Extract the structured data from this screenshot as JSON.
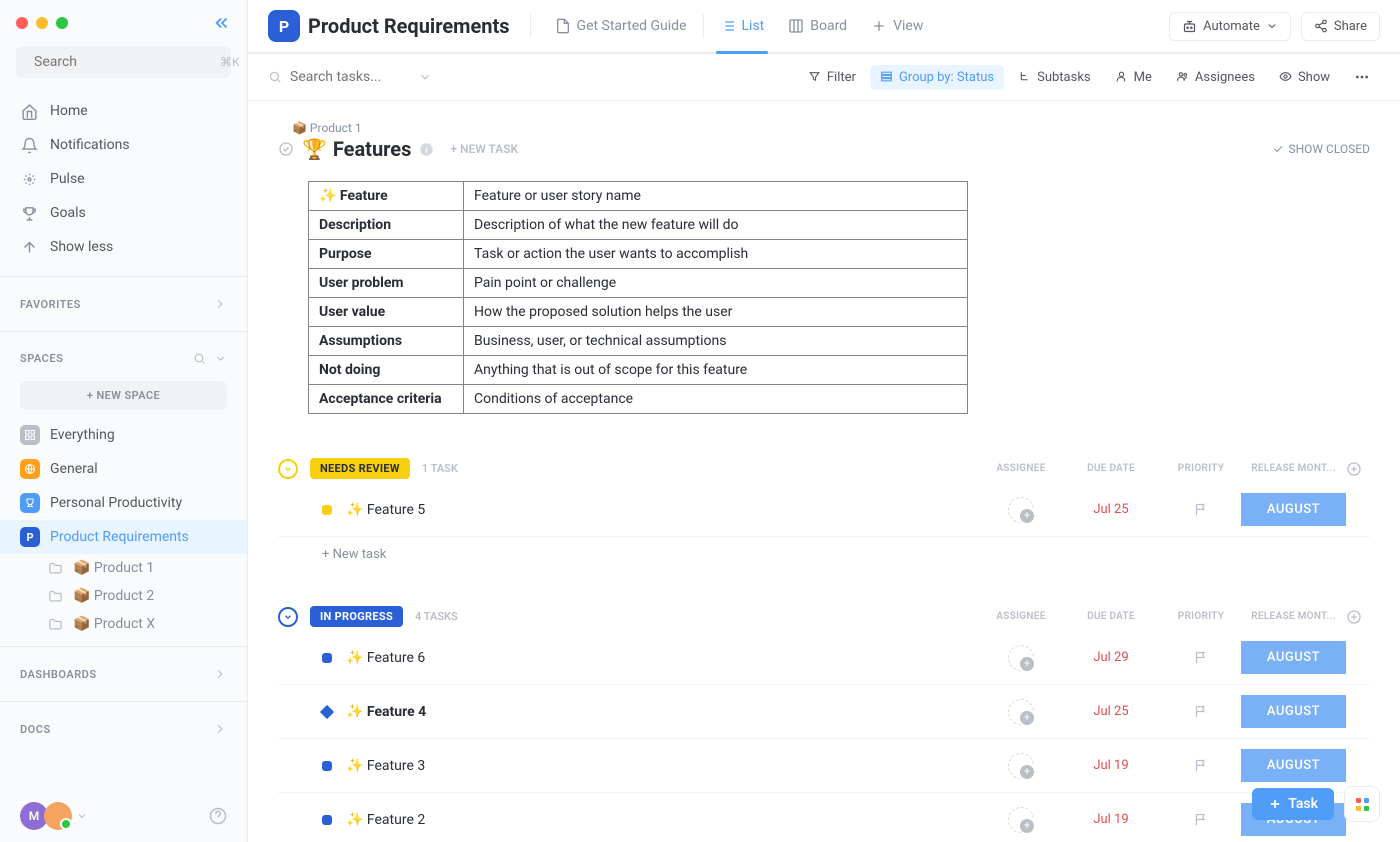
{
  "sidebar": {
    "search_placeholder": "Search",
    "shortcut": "⌘K",
    "nav": [
      {
        "label": "Home",
        "icon": "home"
      },
      {
        "label": "Notifications",
        "icon": "bell"
      },
      {
        "label": "Pulse",
        "icon": "pulse"
      },
      {
        "label": "Goals",
        "icon": "trophy"
      },
      {
        "label": "Show less",
        "icon": "up-arrow"
      }
    ],
    "favorites_label": "FAVORITES",
    "spaces_label": "SPACES",
    "new_space_label": "+ NEW SPACE",
    "spaces": [
      {
        "label": "Everything",
        "badge_class": "sb-grey",
        "badge_icon": "grid"
      },
      {
        "label": "General",
        "badge_class": "sb-orange",
        "badge_icon": "globe"
      },
      {
        "label": "Personal Productivity",
        "badge_class": "sb-blue",
        "badge_icon": "cup"
      },
      {
        "label": "Product Requirements",
        "badge_class": "sb-darkblue",
        "badge_text": "P",
        "active": true
      }
    ],
    "folders": [
      {
        "label": "📦 Product 1"
      },
      {
        "label": "📦 Product 2"
      },
      {
        "label": "📦 Product X"
      }
    ],
    "dashboards_label": "DASHBOARDS",
    "docs_label": "DOCS",
    "avatar_initial": "M"
  },
  "header": {
    "workspace_badge": "P",
    "workspace_title": "Product Requirements",
    "tabs": [
      {
        "label": "Get Started Guide",
        "icon": "doc"
      },
      {
        "label": "List",
        "icon": "list",
        "active": true
      },
      {
        "label": "Board",
        "icon": "board"
      },
      {
        "label": "View",
        "icon": "plus"
      }
    ],
    "automate_label": "Automate",
    "share_label": "Share"
  },
  "toolbar": {
    "search_placeholder": "Search tasks...",
    "chips": [
      {
        "label": "Filter",
        "icon": "filter"
      },
      {
        "label": "Group by: Status",
        "icon": "group",
        "active": true
      },
      {
        "label": "Subtasks",
        "icon": "subtask"
      },
      {
        "label": "Me",
        "icon": "person"
      },
      {
        "label": "Assignees",
        "icon": "people"
      },
      {
        "label": "Show",
        "icon": "eye"
      }
    ]
  },
  "breadcrumb": {
    "parent": "📦 Product 1"
  },
  "list": {
    "title_emoji": "🏆",
    "title": "Features",
    "new_task_label": "+ NEW TASK",
    "show_closed_label": "SHOW CLOSED"
  },
  "feature_table": {
    "rows": [
      {
        "key": "✨ Feature",
        "val": "Feature or user story name"
      },
      {
        "key": "Description",
        "val": "Description of what the new feature will do"
      },
      {
        "key": "Purpose",
        "val": "Task or action the user wants to accomplish"
      },
      {
        "key": "User problem",
        "val": "Pain point or challenge"
      },
      {
        "key": "User value",
        "val": "How the proposed solution helps the user"
      },
      {
        "key": "Assumptions",
        "val": "Business, user, or technical assumptions"
      },
      {
        "key": "Not doing",
        "val": "Anything that is out of scope for this feature"
      },
      {
        "key": "Acceptance criteria",
        "val": "Conditions of acceptance"
      }
    ]
  },
  "columns": {
    "assignee": "ASSIGNEE",
    "due_date": "DUE DATE",
    "priority": "PRIORITY",
    "release": "RELEASE MONT..."
  },
  "groups": [
    {
      "status": "NEEDS REVIEW",
      "status_color": "#f9d00f",
      "toggle_color": "#f9d00f",
      "text_color": "#292d34",
      "count": "1 TASK",
      "tasks": [
        {
          "name": "✨ Feature 5",
          "status_color": "#f9d00f",
          "shape": "square",
          "due": "Jul 25",
          "release": "AUGUST",
          "bold": false
        }
      ]
    },
    {
      "status": "IN PROGRESS",
      "status_color": "#2a5fd6",
      "toggle_color": "#2a5fd6",
      "text_color": "#ffffff",
      "count": "4 TASKS",
      "tasks": [
        {
          "name": "✨ Feature 6",
          "status_color": "#2a5fd6",
          "shape": "square",
          "due": "Jul 29",
          "release": "AUGUST",
          "bold": false
        },
        {
          "name": "✨ Feature 4",
          "status_color": "#2a5fd6",
          "shape": "diamond",
          "due": "Jul 25",
          "release": "AUGUST",
          "bold": true
        },
        {
          "name": "✨ Feature 3",
          "status_color": "#2a5fd6",
          "shape": "square",
          "due": "Jul 19",
          "release": "AUGUST",
          "bold": false
        },
        {
          "name": "✨ Feature 2",
          "status_color": "#2a5fd6",
          "shape": "square",
          "due": "Jul 19",
          "release": "AUGUST",
          "bold": false
        }
      ]
    }
  ],
  "new_task_row": "+ New task",
  "fab": {
    "task_label": "Task"
  },
  "colors": {
    "release_badge": "#7ab0f5",
    "due_overdue": "#e04f4f",
    "accent": "#4f9cf9"
  }
}
